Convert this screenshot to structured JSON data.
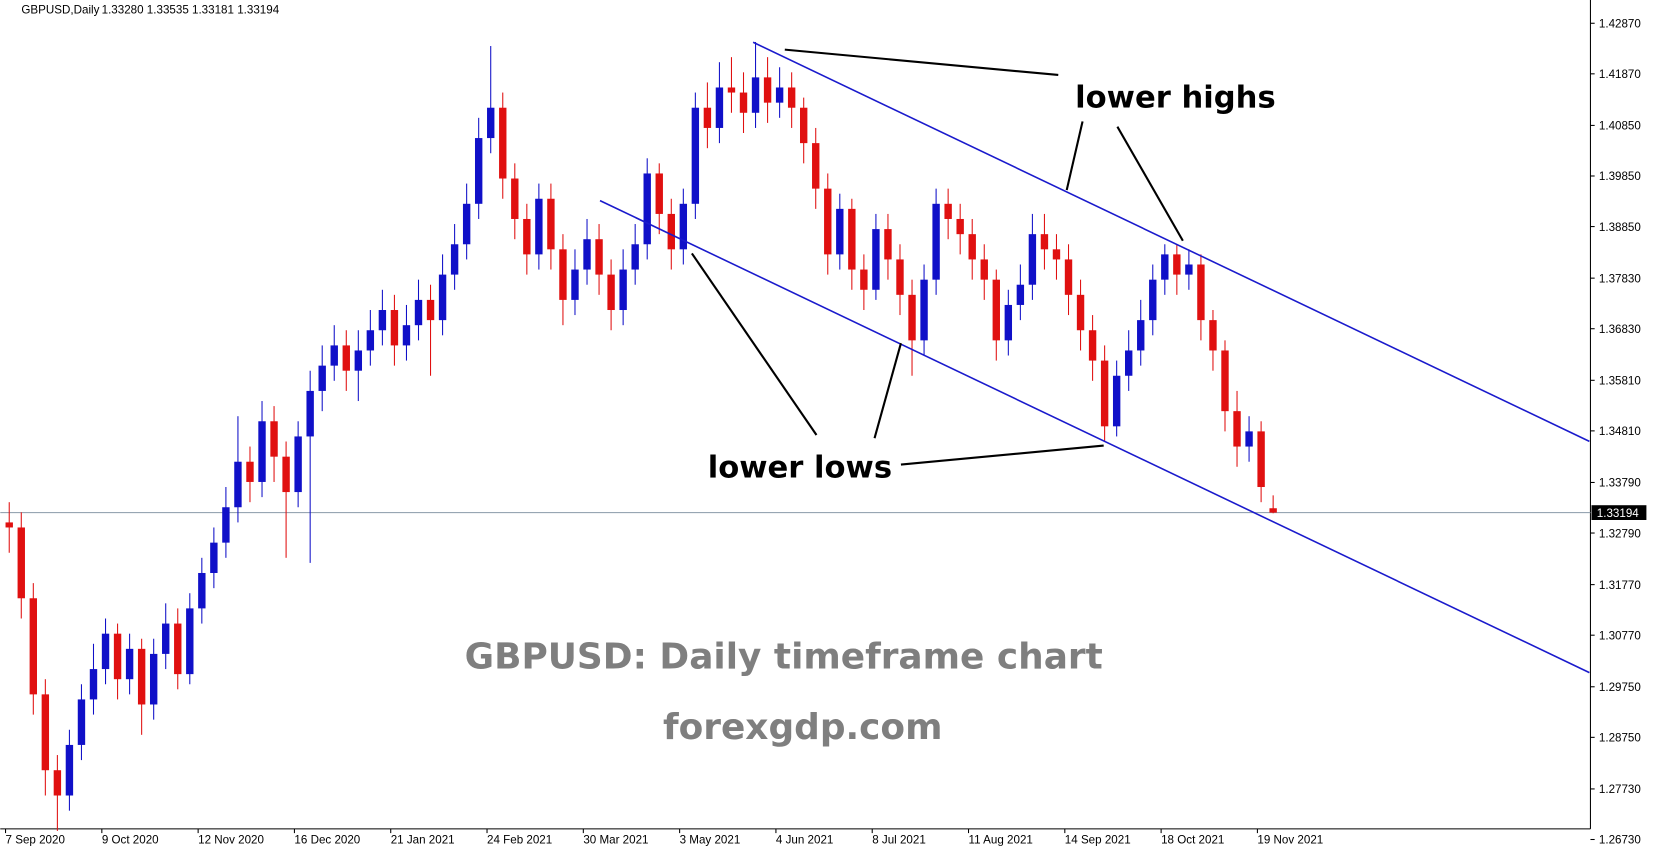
{
  "chart_data": {
    "type": "candlestick",
    "title": "GBPUSD,Daily",
    "header_prices": "1.33280 1.33535 1.33181 1.33194",
    "annotations": [
      "lower highs",
      "lower lows",
      "GBPUSD: Daily timeframe chart",
      "forexgdp.com"
    ],
    "up_color": "#1010c8",
    "down_color": "#e01010",
    "categories": [
      "7 Sep 2020",
      null,
      null,
      null,
      null,
      null,
      null,
      null,
      "9 Oct 2020",
      null,
      null,
      null,
      null,
      null,
      null,
      null,
      "12 Nov 2020",
      null,
      null,
      null,
      null,
      null,
      null,
      null,
      "16 Dec 2020",
      null,
      null,
      null,
      null,
      null,
      null,
      null,
      "21 Jan 2021",
      null,
      null,
      null,
      null,
      null,
      null,
      null,
      "24 Feb 2021",
      null,
      null,
      null,
      null,
      null,
      null,
      null,
      "30 Mar 2021",
      null,
      null,
      null,
      null,
      null,
      null,
      null,
      "3 May 2021",
      null,
      null,
      null,
      null,
      null,
      null,
      null,
      "4 Jun 2021",
      null,
      null,
      null,
      null,
      null,
      null,
      null,
      "8 Jul 2021",
      null,
      null,
      null,
      null,
      null,
      null,
      null,
      "11 Aug 2021",
      null,
      null,
      null,
      null,
      null,
      null,
      null,
      "14 Sep 2021",
      null,
      null,
      null,
      null,
      null,
      null,
      null,
      "18 Oct 2021",
      null,
      null,
      null,
      null,
      null,
      null,
      null,
      "19 Nov 2021",
      null
    ],
    "open": [
      1.33,
      1.329,
      1.315,
      1.296,
      1.281,
      1.276,
      1.286,
      1.295,
      1.301,
      1.308,
      1.299,
      1.305,
      1.294,
      1.304,
      1.31,
      1.3,
      1.313,
      1.32,
      1.326,
      1.333,
      1.342,
      1.338,
      1.35,
      1.343,
      1.336,
      1.347,
      1.356,
      1.361,
      1.365,
      1.36,
      1.364,
      1.368,
      1.372,
      1.365,
      1.369,
      1.374,
      1.37,
      1.379,
      1.385,
      1.393,
      1.406,
      1.412,
      1.398,
      1.39,
      1.383,
      1.394,
      1.384,
      1.374,
      1.38,
      1.386,
      1.379,
      1.372,
      1.38,
      1.385,
      1.399,
      1.391,
      1.384,
      1.393,
      1.412,
      1.408,
      1.416,
      1.415,
      1.411,
      1.418,
      1.413,
      1.416,
      1.412,
      1.405,
      1.396,
      1.383,
      1.392,
      1.38,
      1.376,
      1.388,
      1.382,
      1.375,
      1.366,
      1.378,
      1.393,
      1.39,
      1.387,
      1.382,
      1.378,
      1.366,
      1.373,
      1.377,
      1.387,
      1.384,
      1.382,
      1.375,
      1.368,
      1.362,
      1.349,
      1.359,
      1.364,
      1.37,
      1.378,
      1.383,
      1.379,
      1.381,
      1.37,
      1.364,
      1.352,
      1.345,
      1.348,
      1.3328
    ],
    "high": [
      1.334,
      1.332,
      1.318,
      1.299,
      1.284,
      1.289,
      1.298,
      1.306,
      1.311,
      1.31,
      1.308,
      1.307,
      1.307,
      1.314,
      1.313,
      1.316,
      1.323,
      1.329,
      1.337,
      1.351,
      1.345,
      1.354,
      1.353,
      1.346,
      1.35,
      1.36,
      1.365,
      1.369,
      1.368,
      1.368,
      1.372,
      1.376,
      1.375,
      1.373,
      1.378,
      1.377,
      1.383,
      1.389,
      1.397,
      1.41,
      1.4242,
      1.415,
      1.401,
      1.393,
      1.397,
      1.397,
      1.387,
      1.384,
      1.39,
      1.389,
      1.382,
      1.384,
      1.389,
      1.402,
      1.401,
      1.394,
      1.396,
      1.415,
      1.417,
      1.421,
      1.422,
      1.419,
      1.425,
      1.422,
      1.42,
      1.419,
      1.414,
      1.408,
      1.399,
      1.395,
      1.394,
      1.383,
      1.391,
      1.391,
      1.385,
      1.378,
      1.381,
      1.396,
      1.396,
      1.393,
      1.39,
      1.385,
      1.38,
      1.376,
      1.381,
      1.391,
      1.391,
      1.387,
      1.385,
      1.378,
      1.371,
      1.365,
      1.362,
      1.368,
      1.374,
      1.381,
      1.385,
      1.385,
      1.384,
      1.383,
      1.372,
      1.366,
      1.356,
      1.351,
      1.35,
      1.33535
    ],
    "low": [
      1.324,
      1.311,
      1.292,
      1.276,
      1.269,
      1.273,
      1.283,
      1.292,
      1.298,
      1.295,
      1.296,
      1.288,
      1.291,
      1.301,
      1.297,
      1.298,
      1.31,
      1.317,
      1.323,
      1.33,
      1.334,
      1.335,
      1.338,
      1.323,
      1.333,
      1.322,
      1.352,
      1.358,
      1.356,
      1.354,
      1.361,
      1.365,
      1.361,
      1.362,
      1.366,
      1.359,
      1.367,
      1.376,
      1.382,
      1.39,
      1.403,
      1.394,
      1.386,
      1.379,
      1.38,
      1.38,
      1.369,
      1.371,
      1.377,
      1.375,
      1.368,
      1.369,
      1.377,
      1.382,
      1.387,
      1.38,
      1.381,
      1.39,
      1.404,
      1.405,
      1.411,
      1.407,
      1.408,
      1.409,
      1.41,
      1.408,
      1.401,
      1.392,
      1.379,
      1.38,
      1.376,
      1.372,
      1.374,
      1.378,
      1.371,
      1.359,
      1.363,
      1.375,
      1.386,
      1.383,
      1.378,
      1.374,
      1.362,
      1.363,
      1.37,
      1.374,
      1.38,
      1.378,
      1.371,
      1.364,
      1.358,
      1.346,
      1.347,
      1.356,
      1.361,
      1.367,
      1.375,
      1.375,
      1.376,
      1.366,
      1.36,
      1.348,
      1.341,
      1.342,
      1.334,
      1.33181
    ],
    "close": [
      1.329,
      1.315,
      1.296,
      1.281,
      1.276,
      1.286,
      1.295,
      1.301,
      1.308,
      1.299,
      1.305,
      1.294,
      1.304,
      1.31,
      1.3,
      1.313,
      1.32,
      1.326,
      1.333,
      1.342,
      1.338,
      1.35,
      1.343,
      1.336,
      1.347,
      1.356,
      1.361,
      1.365,
      1.36,
      1.364,
      1.368,
      1.372,
      1.365,
      1.369,
      1.374,
      1.37,
      1.379,
      1.385,
      1.393,
      1.406,
      1.412,
      1.398,
      1.39,
      1.383,
      1.394,
      1.384,
      1.374,
      1.38,
      1.386,
      1.379,
      1.372,
      1.38,
      1.385,
      1.399,
      1.391,
      1.384,
      1.393,
      1.412,
      1.408,
      1.416,
      1.415,
      1.411,
      1.418,
      1.413,
      1.416,
      1.412,
      1.405,
      1.396,
      1.383,
      1.392,
      1.38,
      1.376,
      1.388,
      1.382,
      1.375,
      1.366,
      1.378,
      1.393,
      1.39,
      1.387,
      1.382,
      1.378,
      1.366,
      1.373,
      1.377,
      1.387,
      1.384,
      1.382,
      1.375,
      1.368,
      1.362,
      1.349,
      1.359,
      1.364,
      1.37,
      1.378,
      1.383,
      1.379,
      1.381,
      1.37,
      1.364,
      1.352,
      1.345,
      1.348,
      1.337,
      1.33194
    ],
    "current_price": {
      "value": 1.33194,
      "label": "1.33194"
    },
    "ylim": [
      1.2694,
      1.4333
    ],
    "yticks": [
      {
        "value": 1.4287,
        "label": "1.42870"
      },
      {
        "value": 1.4187,
        "label": "1.41870"
      },
      {
        "value": 1.4085,
        "label": "1.40850"
      },
      {
        "value": 1.3985,
        "label": "1.39850"
      },
      {
        "value": 1.3885,
        "label": "1.38850"
      },
      {
        "value": 1.3783,
        "label": "1.37830"
      },
      {
        "value": 1.3683,
        "label": "1.36830"
      },
      {
        "value": 1.3581,
        "label": "1.35810"
      },
      {
        "value": 1.3481,
        "label": "1.34810"
      },
      {
        "value": 1.3379,
        "label": "1.33790"
      },
      {
        "value": 1.3279,
        "label": "1.32790"
      },
      {
        "value": 1.3177,
        "label": "1.31770"
      },
      {
        "value": 1.3077,
        "label": "1.30770"
      },
      {
        "value": 1.2975,
        "label": "1.29750"
      },
      {
        "value": 1.2875,
        "label": "1.28750"
      },
      {
        "value": 1.2773,
        "label": "1.27730"
      },
      {
        "value": 1.2673,
        "label": "1.26730"
      }
    ]
  }
}
